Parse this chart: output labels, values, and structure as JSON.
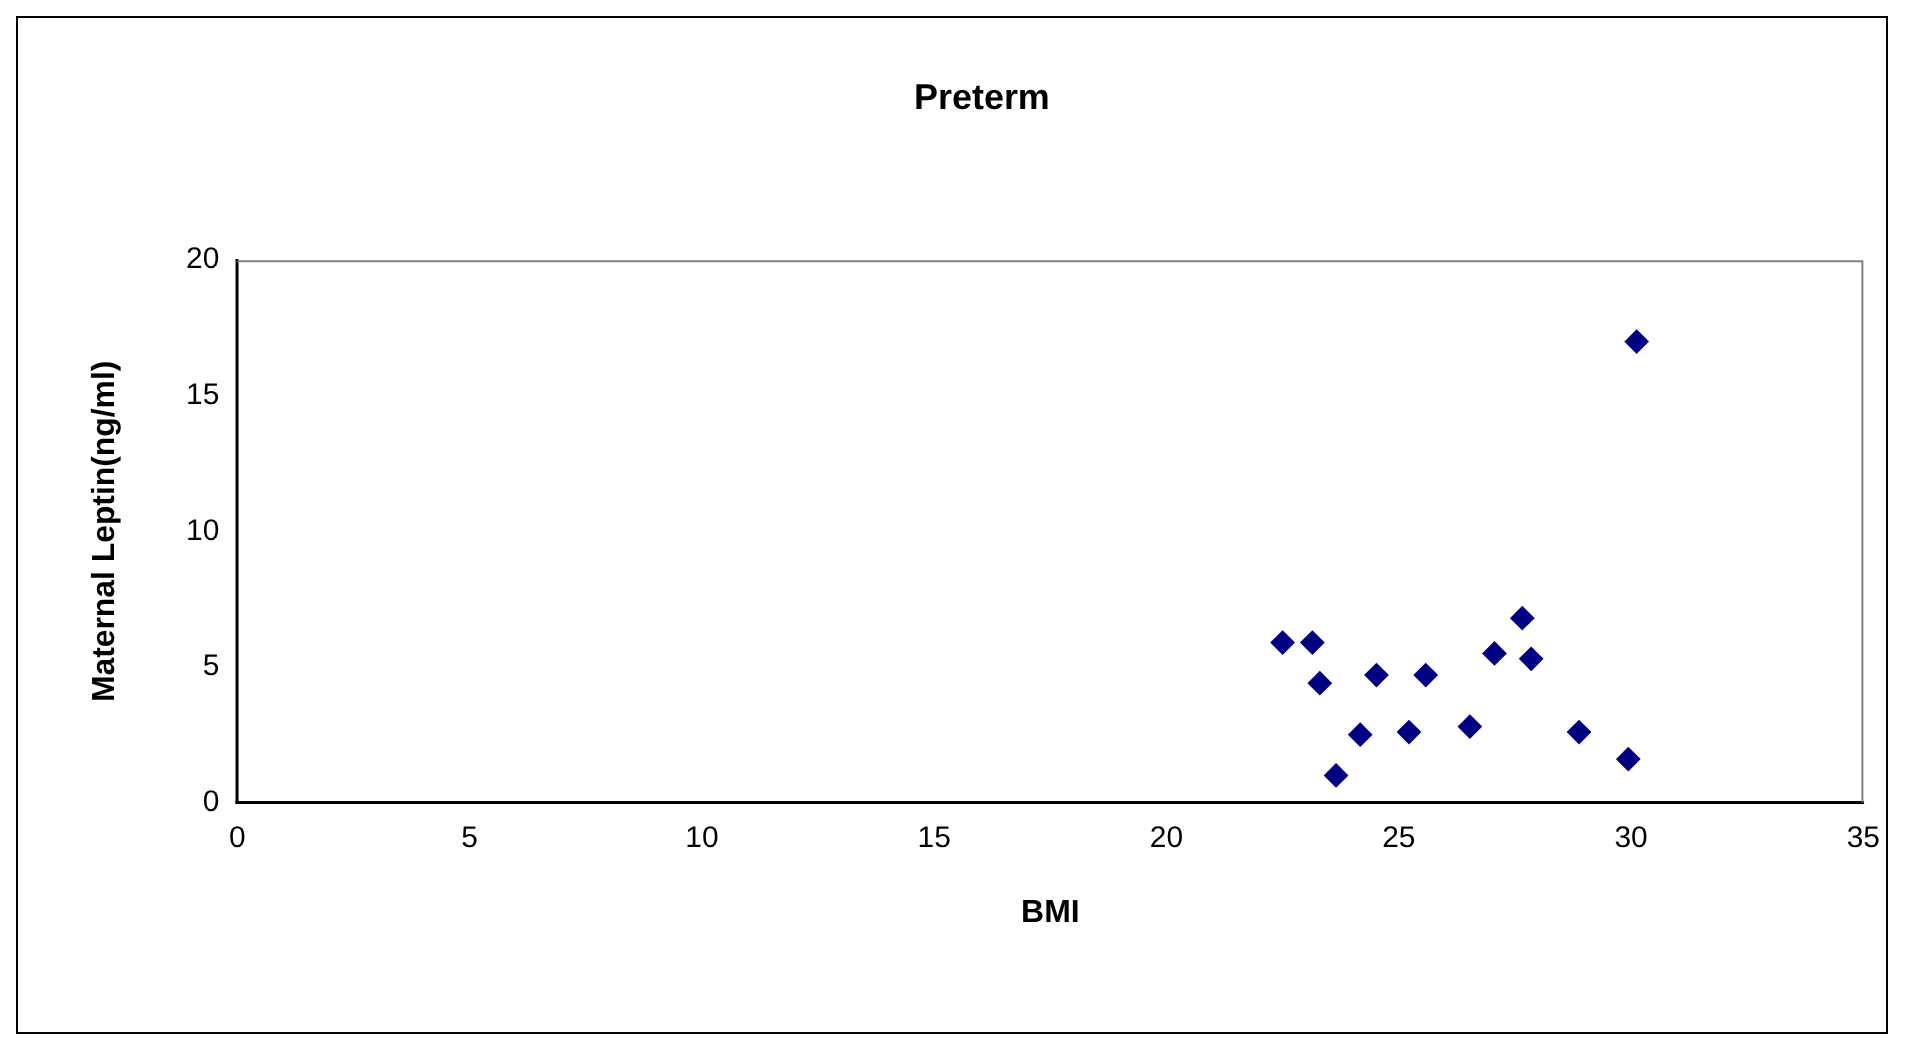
{
  "chart_data": {
    "type": "scatter",
    "title": "Preterm",
    "xlabel": "BMI",
    "ylabel": "Maternal Leptin(ng/ml)",
    "x": [
      22.5,
      23.14,
      23.3,
      23.65,
      24.17,
      24.52,
      25.22,
      25.58,
      26.53,
      27.06,
      27.66,
      27.85,
      28.88,
      29.94,
      30.12
    ],
    "values": [
      5.9,
      5.9,
      4.4,
      1.0,
      2.5,
      4.7,
      2.6,
      4.7,
      2.8,
      5.5,
      6.8,
      5.3,
      2.6,
      1.6,
      17.0
    ],
    "color": "#000080",
    "marker": "diamond",
    "xlim": [
      0,
      35
    ],
    "xticks": [
      0,
      5,
      10,
      15,
      20,
      25,
      30,
      35
    ],
    "ylim": [
      0,
      20
    ],
    "yticks": [
      0,
      5,
      10,
      15,
      20
    ],
    "grid": false,
    "legend": false
  }
}
